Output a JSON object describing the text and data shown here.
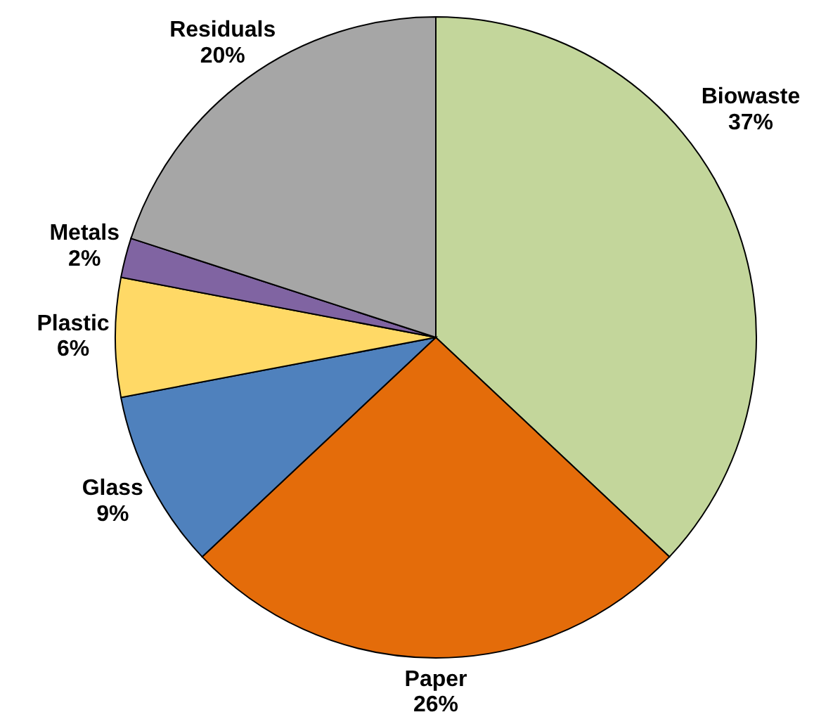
{
  "chart_data": {
    "type": "pie",
    "categories": [
      "Biowaste",
      "Paper",
      "Glass",
      "Plastic",
      "Metals",
      "Residuals"
    ],
    "values": [
      37,
      26,
      9,
      6,
      2,
      20
    ],
    "value_labels": [
      "37%",
      "26%",
      "9%",
      "6%",
      "2%",
      "20%"
    ],
    "colors": [
      "#c3d69b",
      "#e46c0a",
      "#4f81bd",
      "#ffd966",
      "#8064a2",
      "#a6a6a6"
    ]
  }
}
